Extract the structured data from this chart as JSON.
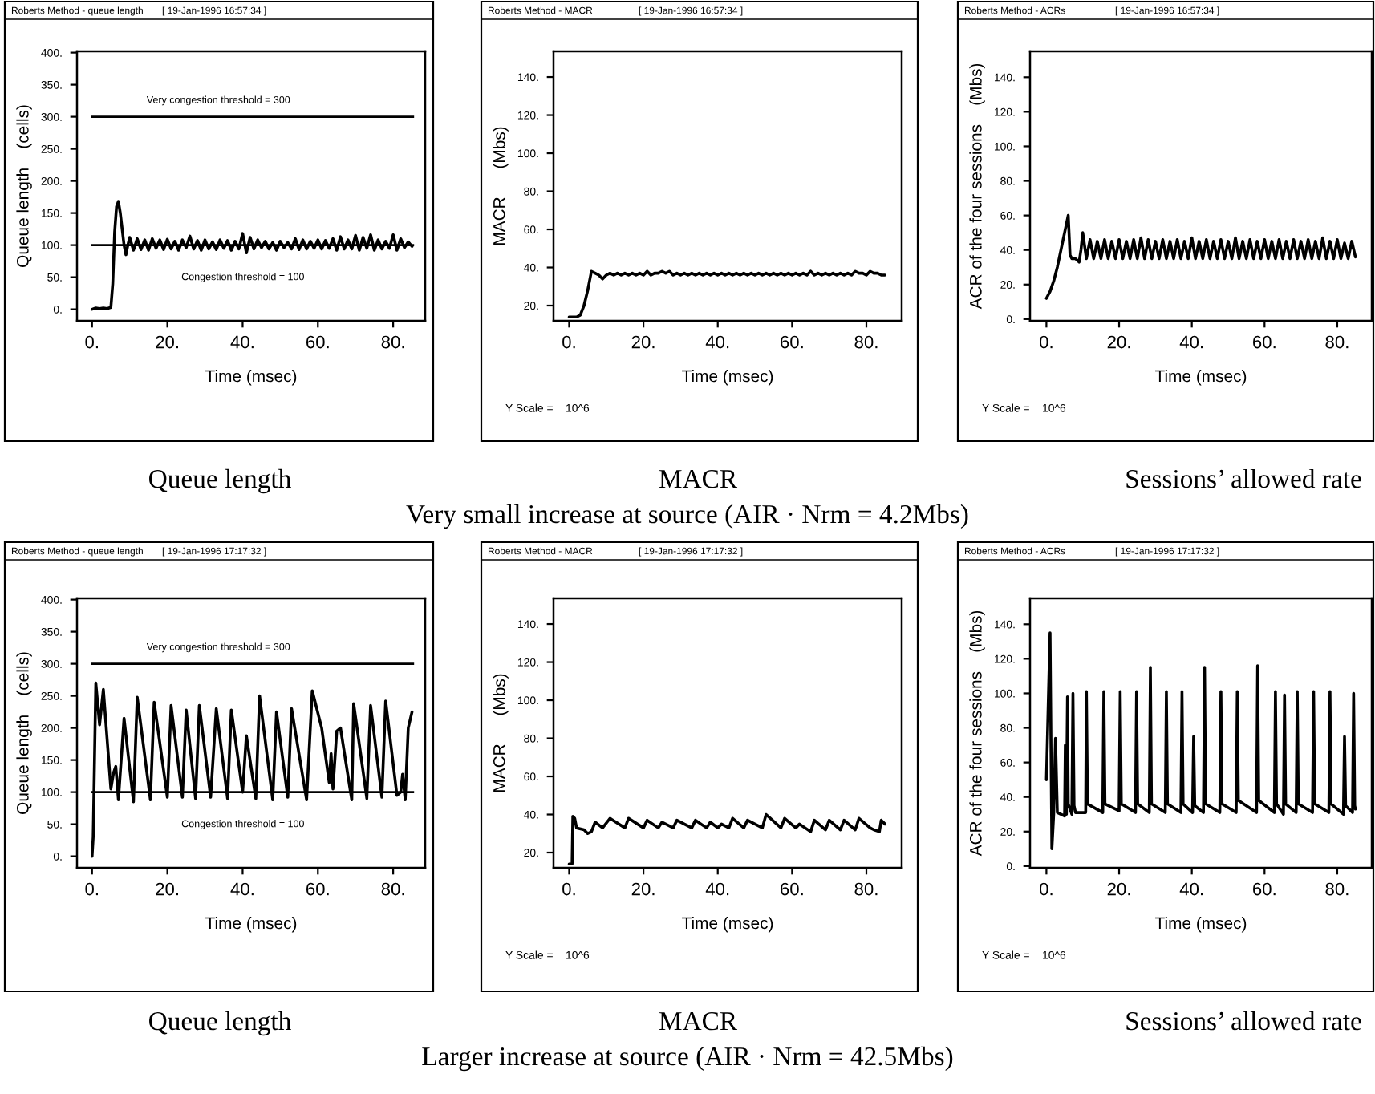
{
  "chart_data": [
    {
      "type": "line",
      "title": "Roberts Method - queue length",
      "subtitle": "[ 19-Jan-1996 16:57:34 ]",
      "xlabel": "Time (msec)",
      "ylabel": "Queue length    (cells)",
      "series": [
        {
          "color": "#000000",
          "x": [
            0,
            1,
            2,
            3,
            4,
            5,
            5.5,
            6,
            6.5,
            7,
            7.5,
            8,
            8.5,
            9,
            9.5,
            10,
            11,
            12,
            13,
            14,
            15,
            16,
            17,
            18,
            19,
            20,
            21,
            22,
            23,
            24,
            25,
            26,
            27,
            28,
            29,
            30,
            31,
            32,
            33,
            34,
            35,
            36,
            37,
            38,
            39,
            40,
            41,
            42,
            43,
            44,
            45,
            46,
            47,
            48,
            49,
            50,
            51,
            52,
            53,
            54,
            55,
            56,
            57,
            58,
            59,
            60,
            61,
            62,
            63,
            64,
            65,
            66,
            67,
            68,
            69,
            70,
            71,
            72,
            73,
            74,
            75,
            76,
            77,
            78,
            79,
            80,
            81,
            82,
            83,
            84,
            85
          ],
          "values": [
            0,
            2,
            1,
            2,
            1,
            3,
            40,
            120,
            160,
            168,
            150,
            125,
            100,
            85,
            100,
            112,
            92,
            110,
            93,
            108,
            92,
            110,
            95,
            108,
            93,
            109,
            94,
            106,
            92,
            108,
            96,
            114,
            94,
            107,
            92,
            108,
            94,
            105,
            93,
            108,
            95,
            107,
            92,
            106,
            94,
            118,
            88,
            112,
            94,
            108,
            96,
            106,
            94,
            104,
            92,
            106,
            96,
            104,
            94,
            110,
            93,
            108,
            94,
            106,
            95,
            108,
            94,
            107,
            95,
            110,
            92,
            113,
            94,
            108,
            94,
            115,
            92,
            112,
            95,
            116,
            92,
            108,
            94,
            106,
            95,
            116,
            92,
            110,
            96,
            105,
            98
          ]
        }
      ],
      "xlim": [
        -4,
        88.5
      ],
      "ylim": [
        -18,
        402
      ],
      "xticks": [
        {
          "value": 0,
          "label": "0."
        },
        {
          "value": 20,
          "label": "20."
        },
        {
          "value": 40,
          "label": "40."
        },
        {
          "value": 60,
          "label": "60."
        },
        {
          "value": 80,
          "label": "80."
        }
      ],
      "yticks": [
        {
          "value": 0,
          "label": "0."
        },
        {
          "value": 50,
          "label": "50."
        },
        {
          "value": 100,
          "label": "100."
        },
        {
          "value": 150,
          "label": "150."
        },
        {
          "value": 200,
          "label": "200."
        },
        {
          "value": 250,
          "label": "250."
        },
        {
          "value": 300,
          "label": "300."
        },
        {
          "value": 350,
          "label": "350."
        },
        {
          "value": 400,
          "label": "400."
        }
      ],
      "ref_lines": [
        {
          "axis": "y",
          "value": 300,
          "label": "Very congestion threshold = 300",
          "color": "#000000"
        },
        {
          "axis": "y",
          "value": 100,
          "label": "Congestion threshold = 100",
          "color": "#000000"
        }
      ],
      "annotations": [
        "Queue length"
      ]
    },
    {
      "type": "line",
      "title": "Roberts Method - MACR",
      "subtitle": "[ 19-Jan-1996 16:57:34 ]",
      "xlabel": "Time (msec)",
      "ylabel": "MACR      (Mbs)",
      "series": [
        {
          "color": "#000000",
          "x": [
            0,
            1,
            2,
            3,
            4,
            5,
            6,
            7,
            8,
            9,
            10,
            11,
            12,
            13,
            14,
            15,
            16,
            17,
            18,
            19,
            20,
            21,
            22,
            23,
            24,
            25,
            26,
            27,
            28,
            29,
            30,
            31,
            32,
            33,
            34,
            35,
            36,
            37,
            38,
            39,
            40,
            41,
            42,
            43,
            44,
            45,
            46,
            47,
            48,
            49,
            50,
            51,
            52,
            53,
            54,
            55,
            56,
            57,
            58,
            59,
            60,
            61,
            62,
            63,
            64,
            65,
            66,
            67,
            68,
            69,
            70,
            71,
            72,
            73,
            74,
            75,
            76,
            77,
            78,
            79,
            80,
            81,
            82,
            83,
            84,
            85
          ],
          "values": [
            14,
            14,
            14,
            15,
            20,
            28,
            38,
            37,
            36,
            34,
            36,
            37,
            36,
            37,
            36,
            37,
            36,
            37,
            36,
            37,
            36,
            38,
            36,
            37,
            37,
            38,
            37,
            38,
            36,
            37,
            36,
            37,
            36,
            37,
            36,
            37,
            36,
            37,
            36,
            37,
            36,
            37,
            36,
            37,
            36,
            37,
            36,
            37,
            36,
            37,
            36,
            37,
            36,
            37,
            36,
            37,
            36,
            37,
            36,
            37,
            36,
            37,
            36,
            37,
            36,
            38,
            36,
            37,
            36,
            37,
            36,
            37,
            36,
            37,
            36,
            37,
            36,
            38,
            37,
            37,
            36,
            38,
            37,
            37,
            36,
            36
          ]
        }
      ],
      "xlim": [
        -4.2,
        89.5
      ],
      "ylim": [
        12,
        153.5
      ],
      "xticks": [
        {
          "value": 0,
          "label": "0."
        },
        {
          "value": 20,
          "label": "20."
        },
        {
          "value": 40,
          "label": "40."
        },
        {
          "value": 60,
          "label": "60."
        },
        {
          "value": 80,
          "label": "80."
        }
      ],
      "yticks": [
        {
          "value": 20,
          "label": "20."
        },
        {
          "value": 40,
          "label": "40."
        },
        {
          "value": 60,
          "label": "60."
        },
        {
          "value": 80,
          "label": "80."
        },
        {
          "value": 100,
          "label": "100."
        },
        {
          "value": 120,
          "label": "120."
        },
        {
          "value": 140,
          "label": "140."
        }
      ],
      "annotations": [
        "MACR",
        "Y Scale =    10^6",
        "Very small increase at source (AIR · Nrm = 4.2Mbs)"
      ]
    },
    {
      "type": "line",
      "title": "Roberts Method - ACRs",
      "subtitle": "[ 19-Jan-1996 16:57:34 ]",
      "xlabel": "Time (msec)",
      "ylabel": "ACR of the four sessions    (Mbs)",
      "series": [
        {
          "color": "#000000",
          "x": [
            0,
            1,
            2,
            3,
            4,
            5,
            6,
            6.5,
            7,
            8,
            9,
            9.5,
            10,
            11,
            12,
            13,
            14,
            15,
            16,
            17,
            18,
            19,
            20,
            21,
            22,
            23,
            24,
            25,
            26,
            27,
            28,
            29,
            30,
            31,
            32,
            33,
            34,
            35,
            36,
            37,
            38,
            39,
            40,
            41,
            42,
            43,
            44,
            45,
            46,
            47,
            48,
            49,
            50,
            51,
            52,
            53,
            54,
            55,
            56,
            57,
            58,
            59,
            60,
            61,
            62,
            63,
            64,
            65,
            66,
            67,
            68,
            69,
            70,
            71,
            72,
            73,
            74,
            75,
            76,
            77,
            78,
            79,
            80,
            81,
            82,
            83,
            84,
            85
          ],
          "values": [
            12,
            16,
            22,
            30,
            40,
            50,
            60,
            37,
            35,
            35,
            33,
            40,
            50,
            35,
            46,
            35,
            45,
            35,
            46,
            35,
            45,
            35,
            46,
            35,
            45,
            35,
            46,
            35,
            47,
            35,
            46,
            35,
            45,
            35,
            46,
            35,
            45,
            35,
            46,
            35,
            45,
            35,
            47,
            35,
            45,
            35,
            46,
            35,
            45,
            35,
            46,
            35,
            45,
            35,
            47,
            35,
            45,
            35,
            46,
            35,
            45,
            35,
            46,
            35,
            45,
            35,
            46,
            35,
            45,
            35,
            46,
            35,
            45,
            35,
            46,
            35,
            45,
            35,
            47,
            35,
            45,
            35,
            46,
            35,
            44,
            35,
            45,
            36
          ]
        }
      ],
      "xlim": [
        -4.5,
        89.5
      ],
      "ylim": [
        -1,
        155
      ],
      "xticks": [
        {
          "value": 0,
          "label": "0."
        },
        {
          "value": 20,
          "label": "20."
        },
        {
          "value": 40,
          "label": "40."
        },
        {
          "value": 60,
          "label": "60."
        },
        {
          "value": 80,
          "label": "80."
        }
      ],
      "yticks": [
        {
          "value": 0,
          "label": "0."
        },
        {
          "value": 20,
          "label": "20."
        },
        {
          "value": 40,
          "label": "40."
        },
        {
          "value": 60,
          "label": "60."
        },
        {
          "value": 80,
          "label": "80."
        },
        {
          "value": 100,
          "label": "100."
        },
        {
          "value": 120,
          "label": "120."
        },
        {
          "value": 140,
          "label": "140."
        }
      ],
      "annotations": [
        "Sessions’ allowed rate",
        "Y Scale =    10^6"
      ]
    },
    {
      "type": "line",
      "title": "Roberts Method - queue length",
      "subtitle": "[ 19-Jan-1996 17:17:32 ]",
      "xlabel": "Time (msec)",
      "ylabel": "Queue length    (cells)",
      "series": [
        {
          "color": "#000000",
          "x": [
            0,
            0.3,
            1,
            2,
            3,
            5,
            5.7,
            6.3,
            7,
            8.5,
            11,
            12,
            15.5,
            16.5,
            20,
            21,
            24,
            25,
            27.5,
            28.5,
            31.5,
            33,
            36,
            37,
            40,
            41,
            43.5,
            44.5,
            48,
            49,
            52,
            53,
            57,
            58.5,
            61,
            63,
            63.5,
            64,
            65,
            66,
            69,
            69.5,
            73,
            74,
            77,
            78,
            81,
            82,
            82.5,
            83.2,
            84,
            85
          ],
          "values": [
            0,
            30,
            270,
            205,
            260,
            105,
            130,
            140,
            88,
            215,
            85,
            248,
            88,
            240,
            92,
            235,
            92,
            228,
            90,
            235,
            92,
            230,
            90,
            228,
            100,
            188,
            90,
            250,
            88,
            225,
            92,
            230,
            88,
            258,
            200,
            115,
            160,
            105,
            195,
            200,
            88,
            238,
            90,
            235,
            92,
            242,
            95,
            100,
            128,
            88,
            200,
            225
          ]
        }
      ],
      "xlim": [
        -4,
        88.5
      ],
      "ylim": [
        -18,
        402
      ],
      "xticks": [
        {
          "value": 0,
          "label": "0."
        },
        {
          "value": 20,
          "label": "20."
        },
        {
          "value": 40,
          "label": "40."
        },
        {
          "value": 60,
          "label": "60."
        },
        {
          "value": 80,
          "label": "80."
        }
      ],
      "yticks": [
        {
          "value": 0,
          "label": "0."
        },
        {
          "value": 50,
          "label": "50."
        },
        {
          "value": 100,
          "label": "100."
        },
        {
          "value": 150,
          "label": "150."
        },
        {
          "value": 200,
          "label": "200."
        },
        {
          "value": 250,
          "label": "250."
        },
        {
          "value": 300,
          "label": "300."
        },
        {
          "value": 350,
          "label": "350."
        },
        {
          "value": 400,
          "label": "400."
        }
      ],
      "ref_lines": [
        {
          "axis": "y",
          "value": 300,
          "label": "Very congestion threshold = 300",
          "color": "#000000"
        },
        {
          "axis": "y",
          "value": 100,
          "label": "Congestion threshold = 100",
          "color": "#000000"
        }
      ],
      "annotations": [
        "Queue length"
      ]
    },
    {
      "type": "line",
      "title": "Roberts Method - MACR",
      "subtitle": "[ 19-Jan-1996 17:17:32 ]",
      "xlabel": "Time (msec)",
      "ylabel": "MACR      (Mbs)",
      "series": [
        {
          "color": "#000000",
          "x": [
            0,
            0.8,
            1,
            1.5,
            2,
            4,
            5,
            6,
            7,
            9,
            11,
            15,
            16,
            20,
            21,
            24,
            25,
            28,
            29,
            33,
            34,
            37,
            38,
            40,
            41,
            43,
            44,
            47,
            48,
            52,
            53,
            57,
            58,
            61,
            62,
            65,
            66,
            69,
            70,
            73,
            74,
            77,
            78,
            81,
            82,
            83.5,
            84,
            85
          ],
          "values": [
            14,
            14,
            39,
            38,
            33,
            32,
            30,
            31,
            36,
            33,
            38,
            33,
            38,
            33,
            37,
            33,
            36,
            33,
            37,
            33,
            37,
            33,
            36,
            33,
            35,
            33,
            38,
            33,
            37,
            33,
            40,
            33,
            38,
            33,
            35,
            31,
            37,
            32,
            37,
            32,
            37,
            32,
            38,
            33,
            32,
            31,
            37,
            35
          ]
        }
      ],
      "xlim": [
        -4.2,
        89.5
      ],
      "ylim": [
        12,
        153.5
      ],
      "xticks": [
        {
          "value": 0,
          "label": "0."
        },
        {
          "value": 20,
          "label": "20."
        },
        {
          "value": 40,
          "label": "40."
        },
        {
          "value": 60,
          "label": "60."
        },
        {
          "value": 80,
          "label": "80."
        }
      ],
      "yticks": [
        {
          "value": 20,
          "label": "20."
        },
        {
          "value": 40,
          "label": "40."
        },
        {
          "value": 60,
          "label": "60."
        },
        {
          "value": 80,
          "label": "80."
        },
        {
          "value": 100,
          "label": "100."
        },
        {
          "value": 120,
          "label": "120."
        },
        {
          "value": 140,
          "label": "140."
        }
      ],
      "annotations": [
        "MACR",
        "Y Scale =    10^6",
        "Larger increase at source (AIR · Nrm = 42.5Mbs)"
      ]
    },
    {
      "type": "line",
      "title": "Roberts Method - ACRs",
      "subtitle": "[ 19-Jan-1996 17:17:32 ]",
      "xlabel": "Time (msec)",
      "ylabel": "ACR of the four sessions    (Mbs)",
      "series": [
        {
          "color": "#000000",
          "x": [
            0,
            0.5,
            1,
            1.5,
            2,
            2.5,
            3,
            5,
            5.2,
            5.5,
            5.8,
            6,
            7,
            7.3,
            7.6,
            8,
            10.8,
            11,
            11.3,
            15.5,
            15.8,
            16.1,
            20,
            20.3,
            20.6,
            24.5,
            24.8,
            25.1,
            28.3,
            28.6,
            28.9,
            32.7,
            33,
            33.3,
            37,
            37.3,
            37.6,
            40.2,
            40.5,
            40.8,
            43.2,
            43.5,
            43.8,
            47.7,
            48,
            48.3,
            52.2,
            52.5,
            52.8,
            57.8,
            58.1,
            58.4,
            62.7,
            63,
            63.3,
            65.2,
            65.5,
            65.8,
            68.7,
            69,
            69.3,
            73.2,
            73.5,
            73.8,
            77.7,
            78,
            78.3,
            81.7,
            82,
            82.3,
            84.2,
            84.5,
            84.8,
            85
          ],
          "values": [
            50,
            93,
            135,
            10,
            30,
            74,
            31,
            29,
            70,
            30,
            98,
            36,
            30,
            100,
            35,
            31,
            31,
            101,
            36,
            31,
            101,
            36,
            32,
            101,
            36,
            31,
            101,
            36,
            31,
            115,
            36,
            31,
            101,
            36,
            31,
            101,
            36,
            31,
            75,
            35,
            31,
            115,
            36,
            31,
            101,
            36,
            31,
            101,
            38,
            31,
            116,
            38,
            31,
            101,
            36,
            30,
            99,
            36,
            31,
            101,
            36,
            31,
            101,
            36,
            31,
            101,
            36,
            30,
            75,
            35,
            31,
            100,
            35,
            33
          ]
        }
      ],
      "xlim": [
        -4.5,
        89.5
      ],
      "ylim": [
        -1,
        155
      ],
      "xticks": [
        {
          "value": 0,
          "label": "0."
        },
        {
          "value": 20,
          "label": "20."
        },
        {
          "value": 40,
          "label": "40."
        },
        {
          "value": 60,
          "label": "60."
        },
        {
          "value": 80,
          "label": "80."
        }
      ],
      "yticks": [
        {
          "value": 0,
          "label": "0."
        },
        {
          "value": 20,
          "label": "20."
        },
        {
          "value": 40,
          "label": "40."
        },
        {
          "value": 60,
          "label": "60."
        },
        {
          "value": 80,
          "label": "80."
        },
        {
          "value": 100,
          "label": "100."
        },
        {
          "value": 120,
          "label": "120."
        },
        {
          "value": 140,
          "label": "140."
        }
      ],
      "annotations": [
        "Sessions’ allowed rate",
        "Y Scale =    10^6"
      ]
    }
  ]
}
